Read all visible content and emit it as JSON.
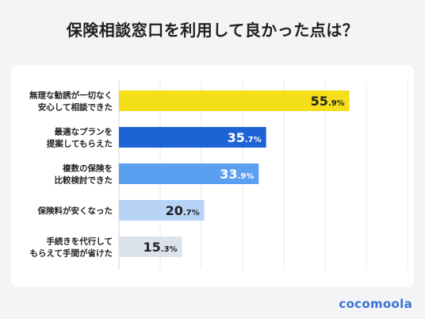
{
  "title": "保険相談窓口を利用して良かった点は？",
  "brand": "cocomoola",
  "chart_data": {
    "type": "bar",
    "orientation": "horizontal",
    "title": "保険相談窓口を利用して良かった点は？",
    "categories": [
      [
        "無理な勧誘が一切なく",
        "安心して相談できた"
      ],
      [
        "最適なプランを",
        "提案してもらえた"
      ],
      [
        "複数の保険を",
        "比較検討できた"
      ],
      [
        "保険料が安くなった"
      ],
      [
        "手続きを代行して",
        "もらえて手間が省けた"
      ]
    ],
    "values": [
      55.9,
      35.7,
      33.9,
      20.7,
      15.3
    ],
    "value_labels": [
      {
        "int": "55",
        "dec": ".9%"
      },
      {
        "int": "35",
        "dec": ".7%"
      },
      {
        "int": "33",
        "dec": ".9%"
      },
      {
        "int": "20",
        "dec": ".7%"
      },
      {
        "int": "15",
        "dec": ".3%"
      }
    ],
    "xlim": [
      0,
      70
    ],
    "grid": true,
    "colors": [
      "#f5df1a",
      "#1e63d6",
      "#5b9ff0",
      "#b7d4f7",
      "#dde3ec"
    ],
    "label_colors": [
      "#222222",
      "#ffffff",
      "#ffffff",
      "#222222",
      "#222222"
    ]
  }
}
